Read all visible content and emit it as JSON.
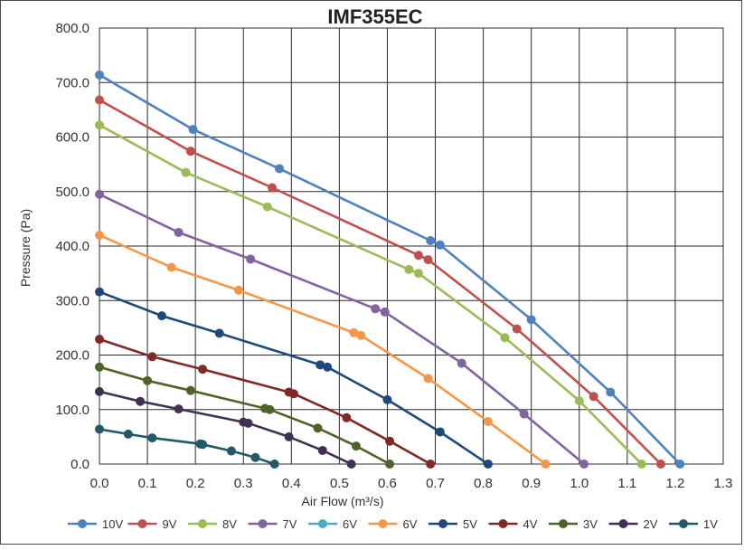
{
  "chart_data": {
    "type": "line",
    "title": "IMF355EC",
    "xlabel": "Air Flow (m³/s)",
    "ylabel": "Pressure (Pa)",
    "xlim": [
      0.0,
      1.3
    ],
    "ylim": [
      0.0,
      800.0
    ],
    "x_ticks": [
      "0.0",
      "0.1",
      "0.2",
      "0.3",
      "0.4",
      "0.5",
      "0.6",
      "0.7",
      "0.8",
      "0.9",
      "1.0",
      "1.1",
      "1.2",
      "1.3"
    ],
    "y_ticks": [
      "0.0",
      "100.0",
      "200.0",
      "300.0",
      "400.0",
      "500.0",
      "600.0",
      "700.0",
      "800.0"
    ],
    "grid": true,
    "legend_position": "bottom",
    "series": [
      {
        "name": "10V",
        "color": "#4e81bd",
        "points": [
          [
            0.0,
            714
          ],
          [
            0.195,
            614
          ],
          [
            0.375,
            542
          ],
          [
            0.69,
            410
          ],
          [
            0.71,
            402
          ],
          [
            0.9,
            265
          ],
          [
            1.065,
            132
          ],
          [
            1.21,
            0
          ]
        ]
      },
      {
        "name": "9V",
        "color": "#c0504d",
        "points": [
          [
            0.0,
            668
          ],
          [
            0.19,
            574
          ],
          [
            0.36,
            507
          ],
          [
            0.665,
            383
          ],
          [
            0.685,
            375
          ],
          [
            0.87,
            248
          ],
          [
            1.03,
            124
          ],
          [
            1.17,
            0
          ]
        ]
      },
      {
        "name": "8V",
        "color": "#9bbb59",
        "points": [
          [
            0.0,
            622
          ],
          [
            0.18,
            535
          ],
          [
            0.35,
            472
          ],
          [
            0.645,
            357
          ],
          [
            0.665,
            350
          ],
          [
            0.845,
            232
          ],
          [
            1.0,
            116
          ],
          [
            1.13,
            0
          ]
        ]
      },
      {
        "name": "7V",
        "color": "#8064a2",
        "points": [
          [
            0.0,
            495
          ],
          [
            0.165,
            425
          ],
          [
            0.315,
            376
          ],
          [
            0.575,
            285
          ],
          [
            0.595,
            279
          ],
          [
            0.755,
            185
          ],
          [
            0.885,
            92
          ],
          [
            1.01,
            0
          ]
        ]
      },
      {
        "name": "6V",
        "color": "#4bacc6",
        "points": []
      },
      {
        "name": "6V",
        "color": "#f79646",
        "points": [
          [
            0.0,
            420
          ],
          [
            0.15,
            361
          ],
          [
            0.29,
            319
          ],
          [
            0.53,
            241
          ],
          [
            0.545,
            236
          ],
          [
            0.685,
            157
          ],
          [
            0.81,
            78
          ],
          [
            0.93,
            0
          ]
        ]
      },
      {
        "name": "5V",
        "color": "#1f497d",
        "points": [
          [
            0.0,
            316
          ],
          [
            0.13,
            272
          ],
          [
            0.25,
            240
          ],
          [
            0.46,
            182
          ],
          [
            0.475,
            178
          ],
          [
            0.6,
            118
          ],
          [
            0.71,
            59
          ],
          [
            0.81,
            0
          ]
        ]
      },
      {
        "name": "4V",
        "color": "#7f2a27",
        "points": [
          [
            0.0,
            229
          ],
          [
            0.11,
            197
          ],
          [
            0.215,
            174
          ],
          [
            0.395,
            132
          ],
          [
            0.405,
            129
          ],
          [
            0.515,
            85
          ],
          [
            0.605,
            42
          ],
          [
            0.69,
            0
          ]
        ]
      },
      {
        "name": "3V",
        "color": "#4f6228",
        "points": [
          [
            0.0,
            178
          ],
          [
            0.1,
            153
          ],
          [
            0.19,
            135
          ],
          [
            0.345,
            102
          ],
          [
            0.355,
            100
          ],
          [
            0.455,
            66
          ],
          [
            0.535,
            33
          ],
          [
            0.605,
            0
          ]
        ]
      },
      {
        "name": "2V",
        "color": "#403152",
        "points": [
          [
            0.0,
            133
          ],
          [
            0.085,
            115
          ],
          [
            0.165,
            101
          ],
          [
            0.3,
            77
          ],
          [
            0.31,
            75
          ],
          [
            0.395,
            50
          ],
          [
            0.465,
            25
          ],
          [
            0.525,
            0
          ]
        ]
      },
      {
        "name": "1V",
        "color": "#215968",
        "points": [
          [
            0.0,
            64
          ],
          [
            0.06,
            55
          ],
          [
            0.11,
            48
          ],
          [
            0.21,
            37
          ],
          [
            0.215,
            36
          ],
          [
            0.275,
            24
          ],
          [
            0.325,
            12
          ],
          [
            0.365,
            0
          ]
        ]
      }
    ]
  }
}
